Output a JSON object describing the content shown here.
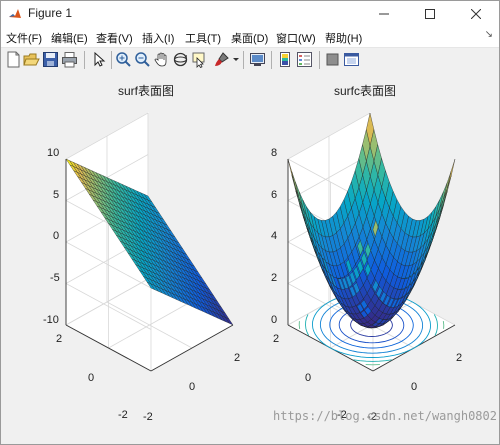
{
  "window": {
    "title": "Figure 1",
    "min_icon": "minimize-icon",
    "max_icon": "maximize-icon",
    "close_icon": "close-icon"
  },
  "menu": {
    "items": [
      {
        "label": "文件(F)"
      },
      {
        "label": "编辑(E)"
      },
      {
        "label": "查看(V)"
      },
      {
        "label": "插入(I)"
      },
      {
        "label": "工具(T)"
      },
      {
        "label": "桌面(D)"
      },
      {
        "label": "窗口(W)"
      },
      {
        "label": "帮助(H)"
      }
    ],
    "overflow_icon": "menu-arrow-icon",
    "overflow_glyph": "↘"
  },
  "toolbar": {
    "icons": [
      "new-figure-icon",
      "open-file-icon",
      "save-icon",
      "print-icon",
      "pointer-icon",
      "zoom-in-icon",
      "zoom-out-icon",
      "pan-icon",
      "rotate-3d-icon",
      "data-cursor-icon",
      "brush-icon",
      "link-plot-icon",
      "colorbar-icon",
      "legend-icon",
      "hide-plot-tools-icon",
      "show-plot-tools-icon"
    ]
  },
  "chart_data": [
    {
      "type": "surface",
      "title": "surf表面图",
      "zlim": [
        -10,
        10
      ],
      "ztick_labels": [
        "10",
        "5",
        "0",
        "-5",
        "-10"
      ],
      "x_tick_labels": [
        "2",
        "0",
        "-2"
      ],
      "y_tick_labels": [
        "-2",
        "0",
        "2"
      ],
      "xlim": [
        -2,
        2
      ],
      "ylim": [
        -2,
        2
      ],
      "grid": true,
      "colormap": "parula",
      "colors": {
        "high": "#f9fb0e",
        "mid": "#2cb99e",
        "low": "#352a87"
      }
    },
    {
      "type": "surface-contour",
      "title": "surfc表面图",
      "zlim": [
        0,
        8
      ],
      "ztick_labels": [
        "8",
        "6",
        "4",
        "2",
        "0"
      ],
      "x_tick_labels": [
        "2",
        "0",
        "-2"
      ],
      "y_tick_labels": [
        "-2",
        "0",
        "2"
      ],
      "xlim": [
        -2,
        2
      ],
      "ylim": [
        -2,
        2
      ],
      "grid": true,
      "colormap": "parula",
      "colors": {
        "high": "#f9fb0e",
        "mid": "#2cb99e",
        "low": "#352a87"
      }
    }
  ],
  "watermark": "https://blog.csdn.net/wangh0802"
}
